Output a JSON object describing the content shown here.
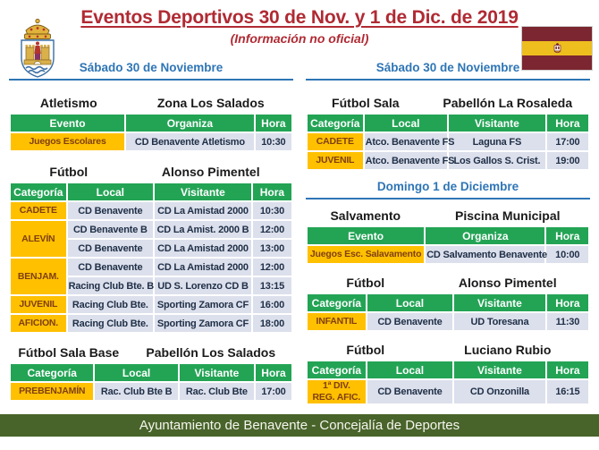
{
  "header": {
    "title": "Eventos Deportivos 30 de Nov. y 1 de Dic. de 2019",
    "subtitle": "(Información no oficial)",
    "logo_icon": "benavente-coat-of-arms",
    "flag_icon": "benavente-crimson-yellow-flag"
  },
  "colors": {
    "title_red": "#B02A33",
    "heading_blue": "#2E75B6",
    "green_header": "#23A455",
    "category_yellow": "#FFC000",
    "category_text": "#7F3F0F",
    "row_bg": "#DCE0EC",
    "cell_text": "#203048",
    "footer_green": "#49642A",
    "flag_maroon": "#7B2630",
    "flag_yellow": "#EDBE1E"
  },
  "left_column": {
    "day_heading": "Sábado 30 de Noviembre",
    "sections": [
      {
        "sport": "Atletismo",
        "venue": "Zona Los Salados",
        "table": {
          "headers": [
            "Evento",
            "Organiza",
            "Hora"
          ],
          "widths": [
            "41%",
            "46%",
            "13%"
          ],
          "rows": [
            [
              {
                "text": "Juegos Escolares",
                "type": "category"
              },
              {
                "text": "CD Benavente Atletismo"
              },
              {
                "text": "10:30"
              }
            ]
          ]
        }
      },
      {
        "sport": "Fútbol",
        "venue": "Alonso Pimentel",
        "table": {
          "headers": [
            "Categoría",
            "Local",
            "Visitante",
            "Hora"
          ],
          "widths": [
            "20%",
            "31%",
            "35%",
            "14%"
          ],
          "rows": [
            [
              {
                "text": "CADETE",
                "type": "category"
              },
              {
                "text": "CD Benavente"
              },
              {
                "text": "CD La Amistad 2000"
              },
              {
                "text": "10:30"
              }
            ],
            [
              {
                "text": "ALEVÍN",
                "type": "category",
                "rowspan": 2
              },
              {
                "text": "CD Benavente B"
              },
              {
                "text": "CD La Amist. 2000 B"
              },
              {
                "text": "12:00"
              }
            ],
            [
              {
                "text": "CD Benavente"
              },
              {
                "text": "CD La Amistad 2000"
              },
              {
                "text": "13:00"
              }
            ],
            [
              {
                "text": "BENJAM.",
                "type": "category",
                "rowspan": 2
              },
              {
                "text": "CD Benavente"
              },
              {
                "text": "CD La Amistad 2000"
              },
              {
                "text": "12:00"
              }
            ],
            [
              {
                "text": "Racing Club Bte. B"
              },
              {
                "text": "UD S. Lorenzo CD B"
              },
              {
                "text": "13:15"
              }
            ],
            [
              {
                "text": "JUVENIL",
                "type": "category"
              },
              {
                "text": "Racing Club Bte."
              },
              {
                "text": "Sporting Zamora CF"
              },
              {
                "text": "16:00"
              }
            ],
            [
              {
                "text": "AFICION.",
                "type": "category"
              },
              {
                "text": "Racing Club Bte."
              },
              {
                "text": "Sporting Zamora CF"
              },
              {
                "text": "18:00"
              }
            ]
          ]
        }
      },
      {
        "sport": "Fútbol Sala Base",
        "venue": "Pabellón Los Salados",
        "table": {
          "headers": [
            "Categoría",
            "Local",
            "Visitante",
            "Hora"
          ],
          "widths": [
            "30%",
            "30%",
            "27%",
            "13%"
          ],
          "rows": [
            [
              {
                "text": "PREBENJAMÍN",
                "type": "category"
              },
              {
                "text": "Rac. Club Bte B"
              },
              {
                "text": "Rac. Club Bte"
              },
              {
                "text": "17:00"
              }
            ]
          ]
        }
      }
    ]
  },
  "right_column": {
    "day_heading": "Sábado 30 de Noviembre",
    "sections": [
      {
        "sport": "Fútbol Sala",
        "venue": "Pabellón La Rosaleda",
        "table": {
          "headers": [
            "Categoría",
            "Local",
            "Visitante",
            "Hora"
          ],
          "widths": [
            "20%",
            "30%",
            "35%",
            "15%"
          ],
          "rows": [
            [
              {
                "text": "CADETE",
                "type": "category"
              },
              {
                "text": "Atco. Benavente FS"
              },
              {
                "text": "Laguna FS"
              },
              {
                "text": "17:00"
              }
            ],
            [
              {
                "text": "JUVENIL",
                "type": "category"
              },
              {
                "text": "Atco. Benavente FS"
              },
              {
                "text": "Los Gallos S. Crist."
              },
              {
                "text": "19:00"
              }
            ]
          ]
        }
      }
    ],
    "day_heading_2": "Domingo 1 de Diciembre",
    "sections_2": [
      {
        "sport": "Salvamento",
        "venue": "Piscina Municipal",
        "table": {
          "headers": [
            "Evento",
            "Organiza",
            "Hora"
          ],
          "widths": [
            "42%",
            "43%",
            "15%"
          ],
          "rows": [
            [
              {
                "text": "Juegos Esc. Salavamento",
                "type": "category"
              },
              {
                "text": "CD Salvamento Benavente"
              },
              {
                "text": "10:00"
              }
            ]
          ]
        }
      },
      {
        "sport": "Fútbol",
        "venue": "Alonso Pimentel",
        "table": {
          "headers": [
            "Categoría",
            "Local",
            "Visitante",
            "Hora"
          ],
          "widths": [
            "21%",
            "31%",
            "33%",
            "15%"
          ],
          "rows": [
            [
              {
                "text": "INFANTIL",
                "type": "category"
              },
              {
                "text": "CD Benavente"
              },
              {
                "text": "UD Toresana"
              },
              {
                "text": "11:30"
              }
            ]
          ]
        }
      },
      {
        "sport": "Fútbol",
        "venue": "Luciano Rubio",
        "table": {
          "headers": [
            "Categoría",
            "Local",
            "Visitante",
            "Hora"
          ],
          "widths": [
            "21%",
            "31%",
            "33%",
            "15%"
          ],
          "rows": [
            [
              {
                "text": "1ª DIV.\nREG. AFIC.",
                "type": "category"
              },
              {
                "text": "CD Benavente"
              },
              {
                "text": "CD Onzonilla"
              },
              {
                "text": "16:15"
              }
            ]
          ]
        }
      }
    ]
  },
  "footer": {
    "text": "Ayuntamiento de Benavente - Concejalía de Deportes"
  }
}
